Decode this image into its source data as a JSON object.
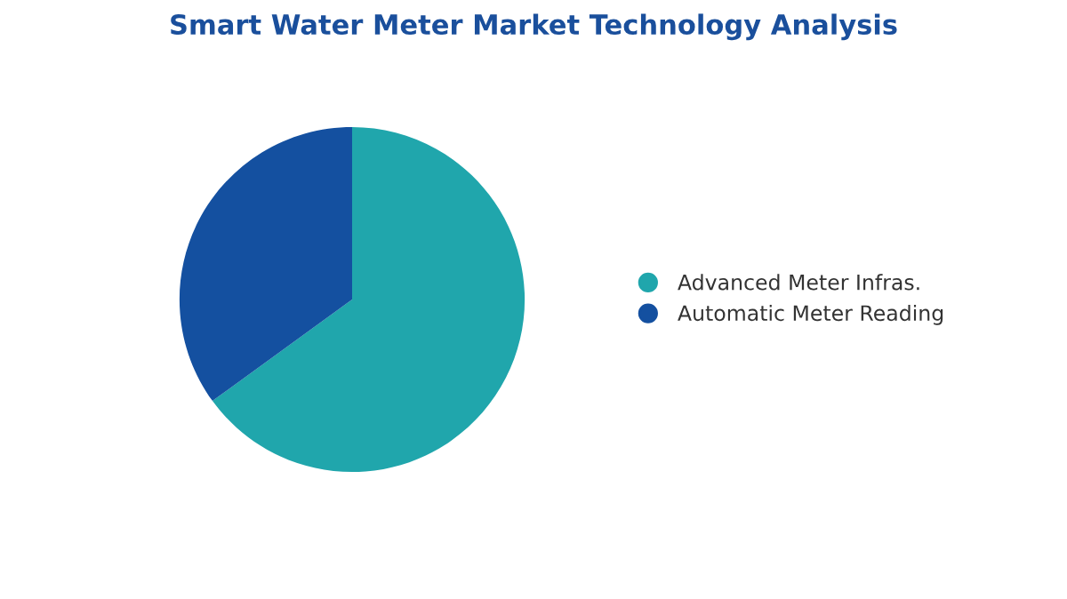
{
  "chart_data": {
    "type": "pie",
    "title": "Smart Water Meter Market Technology Analysis",
    "categories": [
      "Advanced Meter Infras.",
      "Automatic Meter Reading"
    ],
    "values": [
      65,
      35
    ],
    "colors": [
      "#20a6ac",
      "#1450a0"
    ],
    "legend": "right"
  }
}
